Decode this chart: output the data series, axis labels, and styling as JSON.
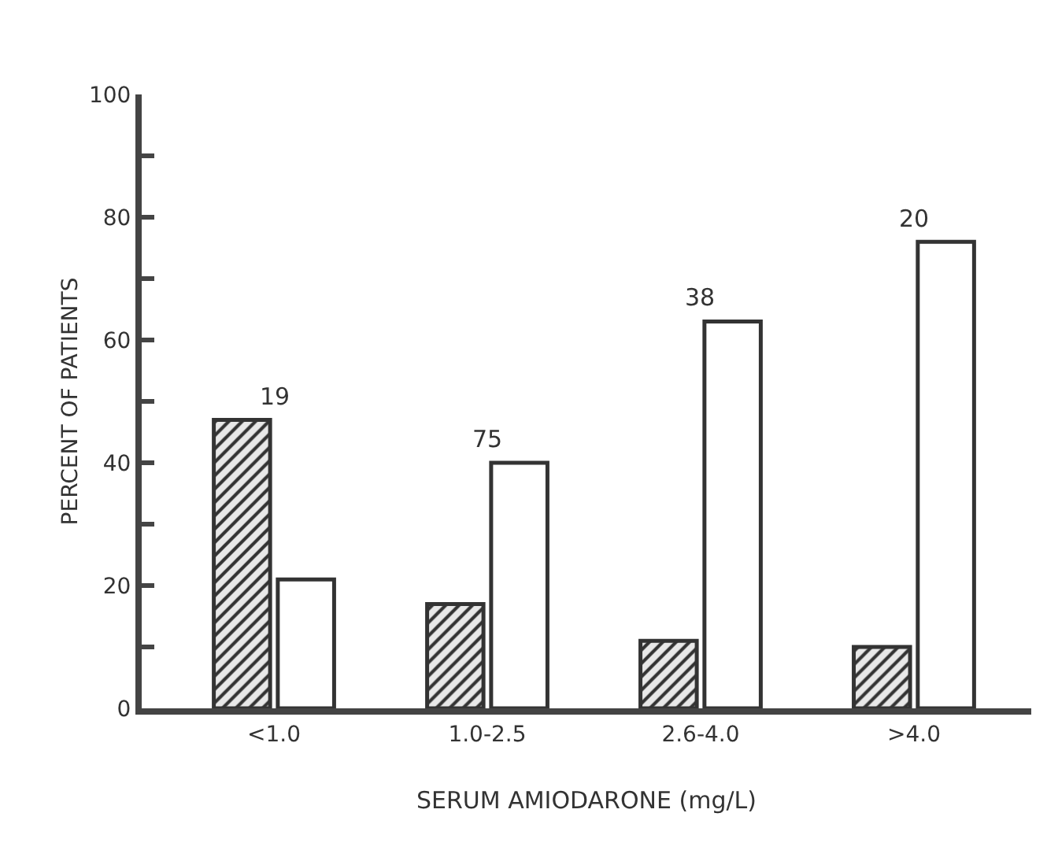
{
  "chart_data": {
    "type": "bar",
    "categories": [
      "<1.0",
      "1.0-2.5",
      "2.6-4.0",
      ">4.0"
    ],
    "series": [
      {
        "color": "#333333",
        "values": [
          47,
          17,
          11,
          10
        ]
      },
      {
        "color": "#ffffff",
        "values": [
          21,
          40,
          63,
          76
        ]
      }
    ],
    "xlabel": "SERUM AMIODARONE (mg/L)",
    "ylabel": "PERCENT OF PATIENTS",
    "ylim": [
      0,
      100
    ],
    "yticks": [
      0,
      {
        "value": 10,
        "label": null
      },
      20,
      {
        "value": 30,
        "label": null
      },
      40,
      {
        "value": 50,
        "label": null
      },
      60,
      {
        "value": 70,
        "label": null
      },
      80,
      {
        "value": 90,
        "label": null
      },
      100
    ],
    "annotations": [
      {
        "text": "19",
        "x": "<1.0",
        "y": 47
      },
      {
        "text": "75",
        "x": "1.0-2.5",
        "y": 40
      },
      {
        "text": "38",
        "x": "2.6-4.0",
        "y": 63
      },
      {
        "text": "20",
        "x": ">4.0",
        "y": 76
      }
    ],
    "grid": false
  }
}
